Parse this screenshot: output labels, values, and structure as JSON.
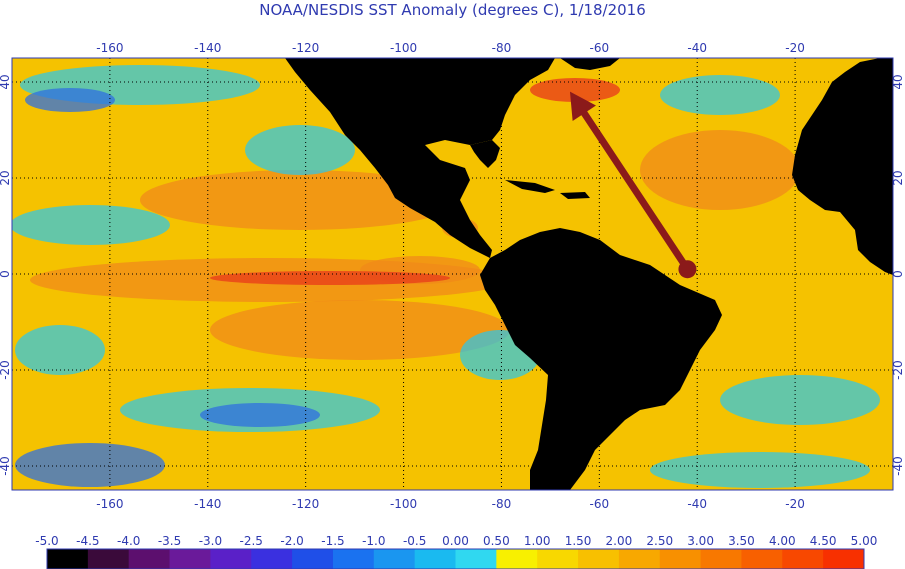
{
  "title": "NOAA/NESDIS SST Anomaly (degrees C), 1/18/2016",
  "map": {
    "lon_range": [
      -180,
      0
    ],
    "lat_range": [
      -45,
      45
    ],
    "lon_ticks": [
      {
        "value": -160,
        "label": "-160"
      },
      {
        "value": -140,
        "label": "-140"
      },
      {
        "value": -120,
        "label": "-120"
      },
      {
        "value": -100,
        "label": "-100"
      },
      {
        "value": -80,
        "label": "-80"
      },
      {
        "value": -60,
        "label": "-60"
      },
      {
        "value": -40,
        "label": "-40"
      },
      {
        "value": -20,
        "label": "-20"
      }
    ],
    "lat_ticks": [
      {
        "value": 40,
        "label": "40"
      },
      {
        "value": 20,
        "label": "20"
      },
      {
        "value": 0,
        "label": "0"
      },
      {
        "value": -20,
        "label": "-20"
      },
      {
        "value": -40,
        "label": "-40"
      }
    ],
    "grid": "dotted",
    "land_color": "#000000",
    "ocean_base_color": "#f5c200",
    "warm_color": "#f08a1a",
    "hot_color": "#e8401a",
    "cool_color": "#26c8f0",
    "cold_color": "#2f6fe0",
    "annotation_arrow": {
      "color": "#8b1a1a",
      "from_lonlat": [
        -42,
        1
      ],
      "to_lonlat": [
        -66,
        38
      ]
    }
  },
  "legend": {
    "entries": [
      {
        "label": "-5.0",
        "color": "#000000"
      },
      {
        "label": "-4.5",
        "color": "#3a0a3a"
      },
      {
        "label": "-4.0",
        "color": "#5c0f6e"
      },
      {
        "label": "-3.5",
        "color": "#6a1a9a"
      },
      {
        "label": "-3.0",
        "color": "#5a20c8"
      },
      {
        "label": "-2.5",
        "color": "#3a30e0"
      },
      {
        "label": "-2.0",
        "color": "#1f4fe8"
      },
      {
        "label": "-1.5",
        "color": "#1a72f0"
      },
      {
        "label": "-1.0",
        "color": "#1a96f0"
      },
      {
        "label": "-0.5",
        "color": "#1abaf0"
      },
      {
        "label": "0.00",
        "color": "#30d8f0"
      },
      {
        "label": "0.50",
        "color": "#f8f000"
      },
      {
        "label": "1.00",
        "color": "#f8d800"
      },
      {
        "label": "1.50",
        "color": "#f8c000"
      },
      {
        "label": "2.00",
        "color": "#f8a800"
      },
      {
        "label": "2.50",
        "color": "#f89000"
      },
      {
        "label": "3.00",
        "color": "#f87800"
      },
      {
        "label": "3.50",
        "color": "#f86000"
      },
      {
        "label": "4.00",
        "color": "#f84800"
      },
      {
        "label": "4.50",
        "color": "#f83000"
      },
      {
        "label": "5.00",
        "color": "#f81800"
      }
    ]
  }
}
